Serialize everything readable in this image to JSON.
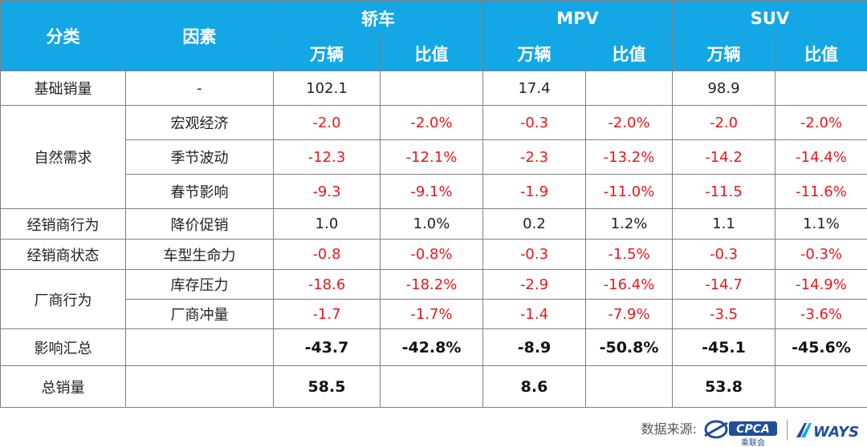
{
  "header": {
    "col_category": "分类",
    "col_factor": "因素",
    "groups": [
      "轿车",
      "MPV",
      "SUV"
    ],
    "sub": [
      "万辆",
      "比值",
      "万辆",
      "比值",
      "万辆",
      "比值"
    ]
  },
  "rows": {
    "base": {
      "category": "基础销量",
      "factor": "-",
      "v": [
        "102.1",
        "",
        "17.4",
        "",
        "98.9",
        ""
      ]
    },
    "natural": {
      "category": "自然需求",
      "items": [
        {
          "factor": "宏观经济",
          "v": [
            "-2.0",
            "-2.0%",
            "-0.3",
            "-2.0%",
            "-2.0",
            "-2.0%"
          ]
        },
        {
          "factor": "季节波动",
          "v": [
            "-12.3",
            "-12.1%",
            "-2.3",
            "-13.2%",
            "-14.2",
            "-14.4%"
          ]
        },
        {
          "factor": "春节影响",
          "v": [
            "-9.3",
            "-9.1%",
            "-1.9",
            "-11.0%",
            "-11.5",
            "-11.6%"
          ]
        }
      ]
    },
    "dealer_behavior": {
      "category": "经销商行为",
      "factor": "降价促销",
      "v": [
        "1.0",
        "1.0%",
        "0.2",
        "1.2%",
        "1.1",
        "1.1%"
      ]
    },
    "dealer_state": {
      "category": "经销商状态",
      "factor": "车型生命力",
      "v": [
        "-0.8",
        "-0.8%",
        "-0.3",
        "-1.5%",
        "-0.3",
        "-0.3%"
      ]
    },
    "maker": {
      "category": "厂商行为",
      "items": [
        {
          "factor": "库存压力",
          "v": [
            "-18.6",
            "-18.2%",
            "-2.9",
            "-16.4%",
            "-14.7",
            "-14.9%"
          ]
        },
        {
          "factor": "厂商冲量",
          "v": [
            "-1.7",
            "-1.7%",
            "-1.4",
            "-7.9%",
            "-3.5",
            "-3.6%"
          ]
        }
      ]
    },
    "impact": {
      "category": "影响汇总",
      "factor": "",
      "v": [
        "-43.7",
        "-42.8%",
        "-8.9",
        "-50.8%",
        "-45.1",
        "-45.6%"
      ]
    },
    "total": {
      "category": "总销量",
      "factor": "",
      "v": [
        "58.5",
        "",
        "8.6",
        "",
        "53.8",
        ""
      ]
    }
  },
  "footer": {
    "source_label": "数据来源:",
    "cpca_logo_text": "CPCA",
    "cpca_sub_text": "乘联会",
    "ways_logo_text": "WAYS"
  },
  "colors": {
    "header_bg": "#14a7e6",
    "negative": "#e8171c"
  }
}
